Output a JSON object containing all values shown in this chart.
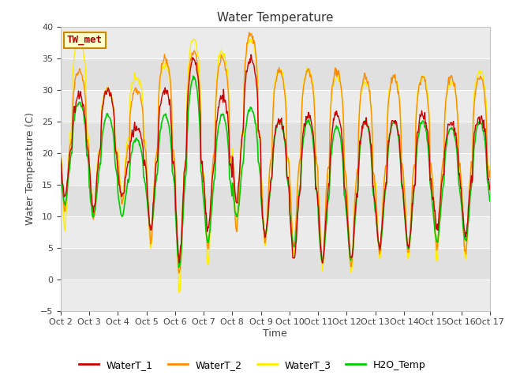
{
  "title": "Water Temperature",
  "ylabel": "Water Temperature (C)",
  "xlabel": "Time",
  "ylim": [
    -5,
    40
  ],
  "yticks": [
    -5,
    0,
    5,
    10,
    15,
    20,
    25,
    30,
    35,
    40
  ],
  "x_labels": [
    "Oct 2",
    "Oct 3",
    "Oct 4",
    "Oct 5",
    "Oct 6",
    "Oct 7",
    "Oct 8",
    "Oct 9",
    "Oct 10",
    "Oct 11",
    "Oct 12",
    "Oct 13",
    "Oct 14",
    "Oct 15",
    "Oct 16",
    "Oct 17"
  ],
  "colors": {
    "WaterT_1": "#cc0000",
    "WaterT_2": "#ff8c00",
    "WaterT_3": "#ffee00",
    "H2O_Temp": "#00cc00"
  },
  "bg_color": "#e0e0e0",
  "light_band_color": "#ebebeb",
  "annotation_text": "TW_met",
  "annotation_facecolor": "#ffffcc",
  "annotation_edgecolor": "#cc8800",
  "annotation_textcolor": "#aa0000",
  "title_fontsize": 11,
  "label_fontsize": 9,
  "tick_fontsize": 8
}
